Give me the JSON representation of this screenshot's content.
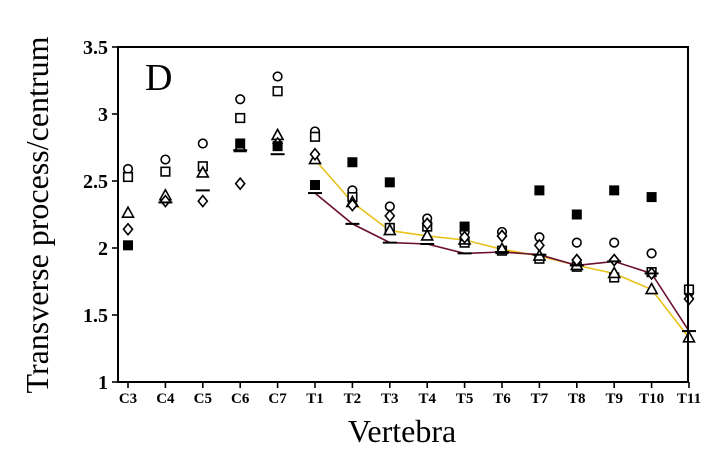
{
  "chart_data": {
    "type": "scatter",
    "panel_label": "D",
    "title": "",
    "xlabel": "Vertebra",
    "ylabel": "Transverse process/centrum",
    "ylim": [
      1,
      3.5
    ],
    "yticks": [
      "1",
      "1.5",
      "2",
      "2.5",
      "3",
      "3.5"
    ],
    "categories": [
      "C3",
      "C4",
      "C5",
      "C6",
      "C7",
      "T1",
      "T2",
      "T3",
      "T4",
      "T5",
      "T6",
      "T7",
      "T8",
      "T9",
      "T10",
      "T11"
    ],
    "grid": false,
    "legend": "none",
    "series": [
      {
        "marker": "circle",
        "values": [
          2.59,
          2.66,
          2.78,
          3.11,
          3.28,
          2.87,
          2.43,
          2.31,
          2.22,
          2.12,
          2.12,
          2.08,
          2.04,
          2.04,
          1.96,
          1.67
        ]
      },
      {
        "marker": "square",
        "values": [
          2.53,
          2.57,
          2.61,
          2.97,
          3.17,
          2.83,
          2.38,
          2.15,
          2.16,
          2.04,
          1.98,
          1.92,
          1.86,
          1.78,
          1.82,
          1.69
        ]
      },
      {
        "marker": "triangle",
        "values": [
          2.26,
          2.39,
          2.56,
          2.75,
          2.84,
          2.66,
          2.34,
          2.13,
          2.09,
          2.06,
          1.99,
          1.94,
          1.87,
          1.81,
          1.69,
          1.33
        ]
      },
      {
        "marker": "diamond",
        "values": [
          2.14,
          2.35,
          2.35,
          2.48,
          2.78,
          2.7,
          2.32,
          2.24,
          2.18,
          2.08,
          2.09,
          2.02,
          1.91,
          1.91,
          1.81,
          1.62
        ]
      },
      {
        "marker": "filled-square",
        "values": [
          2.02,
          null,
          null,
          2.78,
          2.76,
          2.47,
          2.64,
          2.49,
          null,
          2.16,
          null,
          2.43,
          2.25,
          2.43,
          2.38,
          null
        ]
      },
      {
        "marker": "dash",
        "values": [
          null,
          2.34,
          2.43,
          2.73,
          2.7,
          2.41,
          2.18,
          2.04,
          2.03,
          1.96,
          1.97,
          1.95,
          1.87,
          1.9,
          1.81,
          1.38
        ]
      }
    ],
    "lines": [
      {
        "color": "#e8c21a",
        "from_category": "T1",
        "values": [
          2.66,
          2.34,
          2.13,
          2.09,
          2.06,
          1.99,
          1.94,
          1.87,
          1.81,
          1.69,
          1.33
        ]
      },
      {
        "color": "#6b1030",
        "from_category": "T1",
        "values": [
          2.41,
          2.18,
          2.04,
          2.03,
          1.96,
          1.97,
          1.95,
          1.87,
          1.9,
          1.81,
          1.38
        ]
      }
    ]
  }
}
